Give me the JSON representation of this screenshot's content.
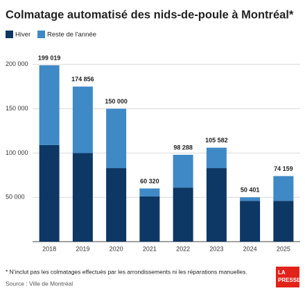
{
  "chart_data": {
    "type": "stacked_bar",
    "title": "Colmatage automatisé des nids-de-poule à Montréal*",
    "categories": [
      "2018",
      "2019",
      "2020",
      "2021",
      "2022",
      "2023",
      "2024",
      "2025"
    ],
    "series": [
      {
        "name": "Hiver",
        "color": "#0d3764",
        "values": [
          109000,
          100000,
          83000,
          51000,
          61000,
          83000,
          46000,
          46000
        ]
      },
      {
        "name": "Reste de l'année",
        "color": "#3f89c6",
        "values": [
          90000,
          75000,
          67000,
          9000,
          37000,
          23000,
          4000,
          28000
        ]
      }
    ],
    "total_labels": [
      "199 019",
      "174 856",
      "150 000",
      "60 320",
      "98 288",
      "105 582",
      "50 401",
      "74 159"
    ],
    "ylim": [
      0,
      210000
    ],
    "yticks": [
      {
        "value": 50000,
        "label": "50 000"
      },
      {
        "value": 100000,
        "label": "100 000"
      },
      {
        "value": 150000,
        "label": "150 000"
      },
      {
        "value": 200000,
        "label": "200 000"
      }
    ],
    "grid": true,
    "footnote": "* N'inclut pas les colmatages effectués par les arrondissements ni les réparations manuelles.",
    "source": "Source : Ville de Montréal",
    "logo": [
      "LA",
      "PRESSE"
    ]
  }
}
